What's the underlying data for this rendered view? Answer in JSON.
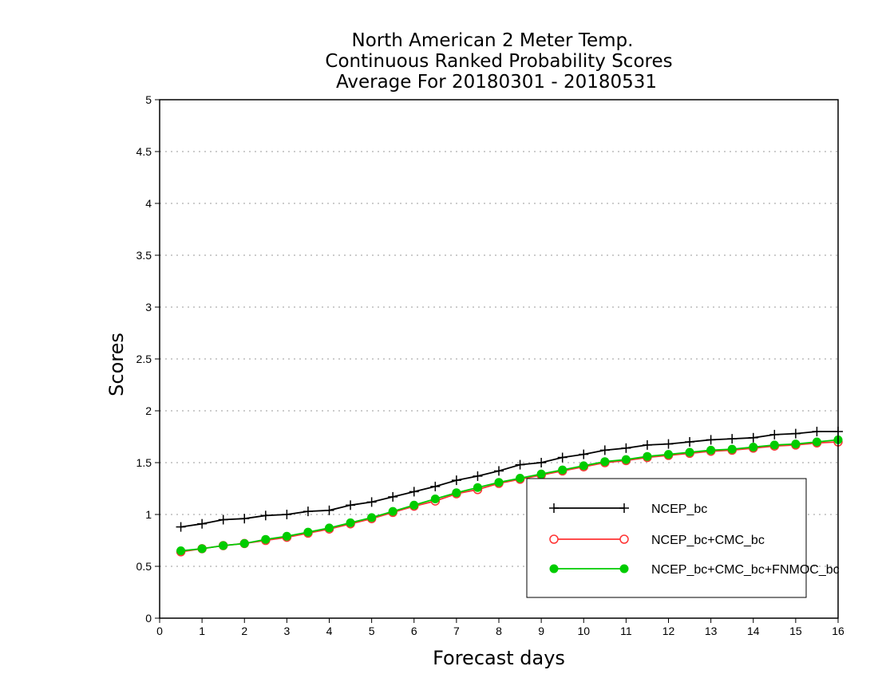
{
  "chart_data": {
    "type": "line",
    "title_lines": [
      "North American 2 Meter Temp.",
      "Continuous Ranked Probability Scores",
      "Average For 20180301 - 20180531"
    ],
    "xlabel": "Forecast days",
    "ylabel": "Scores",
    "xlim": [
      0,
      16
    ],
    "ylim": [
      0,
      5
    ],
    "x_ticks": [
      "0",
      "1",
      "2",
      "3",
      "4",
      "5",
      "6",
      "7",
      "8",
      "9",
      "10",
      "11",
      "12",
      "13",
      "14",
      "15",
      "16"
    ],
    "y_ticks": [
      "0",
      "0.5",
      "1",
      "1.5",
      "2",
      "2.5",
      "3",
      "3.5",
      "4",
      "4.5",
      "5"
    ],
    "grid": "horizontal-dotted",
    "legend_position": "bottom-right",
    "x": [
      0.5,
      1,
      1.5,
      2,
      2.5,
      3,
      3.5,
      4,
      4.5,
      5,
      5.5,
      6,
      6.5,
      7,
      7.5,
      8,
      8.5,
      9,
      9.5,
      10,
      10.5,
      11,
      11.5,
      12,
      12.5,
      13,
      13.5,
      14,
      14.5,
      15,
      15.5,
      16
    ],
    "series": [
      {
        "name": "NCEP_bc",
        "color": "#000000",
        "marker": "plus",
        "values": [
          0.88,
          0.91,
          0.95,
          0.96,
          0.99,
          1.0,
          1.03,
          1.04,
          1.09,
          1.12,
          1.17,
          1.22,
          1.27,
          1.33,
          1.37,
          1.42,
          1.48,
          1.5,
          1.55,
          1.58,
          1.62,
          1.64,
          1.67,
          1.68,
          1.7,
          1.72,
          1.73,
          1.74,
          1.77,
          1.78,
          1.8,
          1.8
        ]
      },
      {
        "name": "NCEP_bc+CMC_bc",
        "color": "#ff3333",
        "marker": "open-circle",
        "values": [
          0.64,
          0.67,
          0.7,
          0.72,
          0.75,
          0.78,
          0.82,
          0.86,
          0.91,
          0.96,
          1.02,
          1.08,
          1.13,
          1.2,
          1.24,
          1.3,
          1.34,
          1.38,
          1.42,
          1.46,
          1.5,
          1.52,
          1.55,
          1.57,
          1.59,
          1.61,
          1.62,
          1.64,
          1.66,
          1.67,
          1.69,
          1.7
        ]
      },
      {
        "name": "NCEP_bc+CMC_bc+FNMOC_bc",
        "color": "#00cc00",
        "marker": "filled-circle",
        "values": [
          0.65,
          0.67,
          0.7,
          0.72,
          0.76,
          0.79,
          0.83,
          0.87,
          0.92,
          0.97,
          1.03,
          1.09,
          1.15,
          1.21,
          1.26,
          1.31,
          1.35,
          1.39,
          1.43,
          1.47,
          1.51,
          1.53,
          1.56,
          1.58,
          1.6,
          1.62,
          1.63,
          1.65,
          1.67,
          1.68,
          1.7,
          1.72
        ]
      }
    ]
  }
}
